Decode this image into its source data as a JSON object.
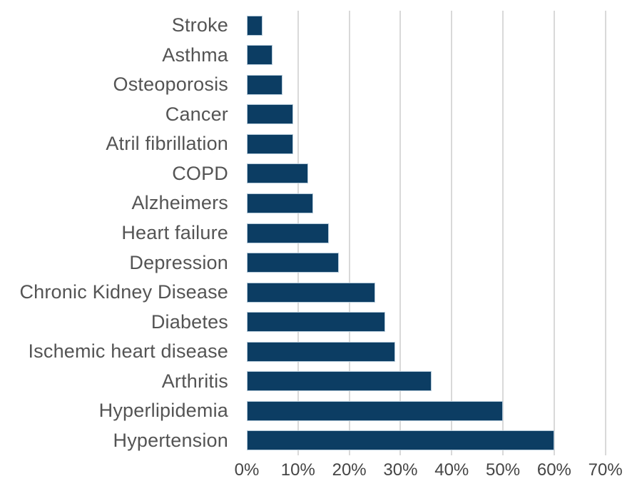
{
  "chart_data": {
    "type": "bar",
    "orientation": "horizontal",
    "title": "",
    "xlabel": "",
    "ylabel": "",
    "unit": "%",
    "categories": [
      "Stroke",
      "Asthma",
      "Osteoporosis",
      "Cancer",
      "Atril fibrillation",
      "COPD",
      "Alzheimers",
      "Heart failure",
      "Depression",
      "Chronic Kidney Disease",
      "Diabetes",
      "Ischemic heart disease",
      "Arthritis",
      "Hyperlipidemia",
      "Hypertension"
    ],
    "values": [
      3,
      5,
      7,
      9,
      9,
      12,
      13,
      16,
      18,
      25,
      27,
      29,
      36,
      50,
      60
    ],
    "x_ticks": [
      "0%",
      "10%",
      "20%",
      "30%",
      "40%",
      "50%",
      "60%",
      "70%"
    ],
    "xlim": [
      0,
      70
    ],
    "grid": "vertical-gridlines-10pct-steps",
    "legend": "none"
  },
  "colors": {
    "bar_fill": "#0C3D63",
    "bar_border": "#B3C9D9",
    "gridline": "#D9D9D9",
    "category_label_text": "#545454",
    "axis_label_text": "#454545",
    "background": "#FFFFFF"
  }
}
